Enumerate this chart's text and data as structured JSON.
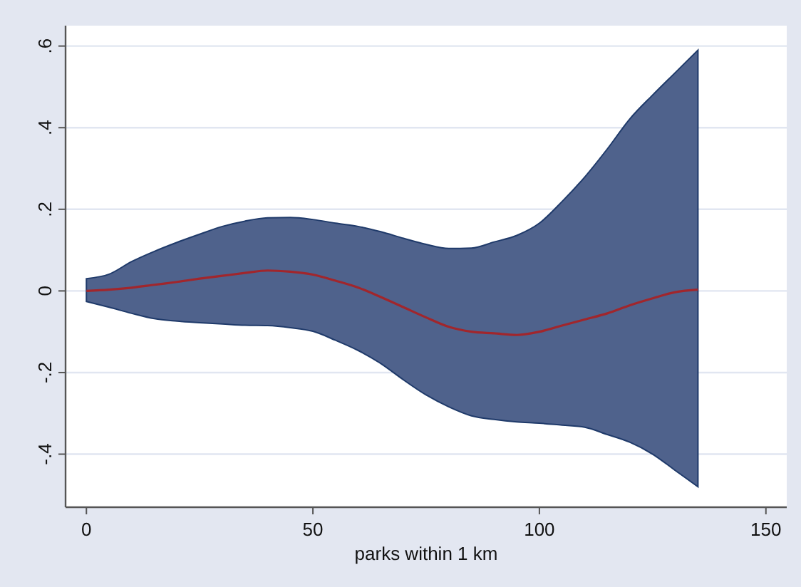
{
  "chart_data": {
    "type": "line",
    "xlabel": "parks within 1 km",
    "xlim": [
      -4.6,
      154.6
    ],
    "xticks": [
      0,
      50,
      100,
      150
    ],
    "ylim": [
      -0.53,
      0.65
    ],
    "yticks": [
      {
        "value": -0.4,
        "label": "-.4"
      },
      {
        "value": -0.2,
        "label": "-.2"
      },
      0,
      {
        "value": 0.2,
        "label": ".2"
      },
      {
        "value": 0.4,
        "label": ".4"
      },
      {
        "value": 0.6,
        "label": ".6"
      }
    ],
    "grid": "y",
    "series": [
      {
        "color": "#a1262c",
        "x": [
          0,
          5,
          10,
          15,
          20,
          25,
          30,
          35,
          40,
          45,
          50,
          55,
          60,
          65,
          70,
          75,
          80,
          85,
          90,
          95,
          100,
          105,
          110,
          115,
          120,
          125,
          130,
          135
        ],
        "values": [
          0,
          0.003,
          0.008,
          0.015,
          0.022,
          0.03,
          0.037,
          0.044,
          0.05,
          0.047,
          0.04,
          0.025,
          0.008,
          -0.015,
          -0.04,
          -0.065,
          -0.088,
          -0.1,
          -0.104,
          -0.108,
          -0.1,
          -0.085,
          -0.07,
          -0.055,
          -0.035,
          -0.018,
          -0.003,
          0.003
        ],
        "upper": [
          0.03,
          0.041,
          0.072,
          0.097,
          0.119,
          0.139,
          0.158,
          0.171,
          0.179,
          0.18,
          0.175,
          0.166,
          0.158,
          0.145,
          0.129,
          0.114,
          0.104,
          0.105,
          0.12,
          0.136,
          0.166,
          0.219,
          0.279,
          0.348,
          0.422,
          0.48,
          0.535,
          0.59
        ],
        "lower": [
          -0.026,
          -0.04,
          -0.055,
          -0.068,
          -0.074,
          -0.078,
          -0.081,
          -0.084,
          -0.085,
          -0.09,
          -0.099,
          -0.121,
          -0.146,
          -0.178,
          -0.218,
          -0.255,
          -0.284,
          -0.306,
          -0.315,
          -0.321,
          -0.324,
          -0.329,
          -0.334,
          -0.352,
          -0.371,
          -0.4,
          -0.44,
          -0.48
        ]
      }
    ]
  }
}
